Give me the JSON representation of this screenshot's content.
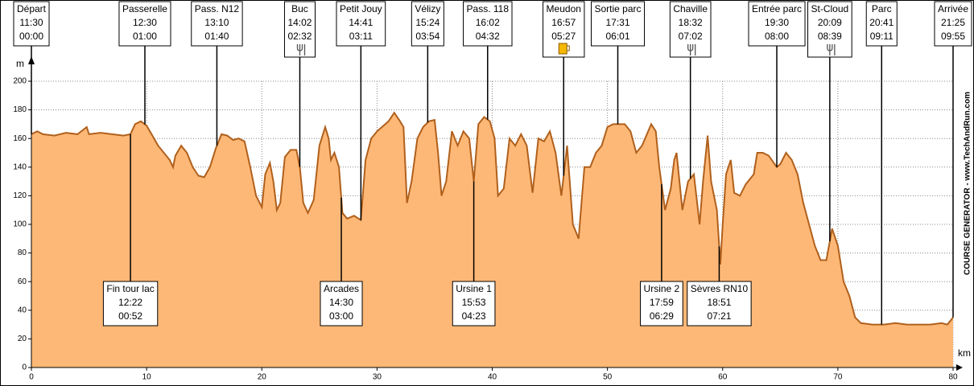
{
  "chart_data": {
    "type": "area",
    "x_label": "km",
    "y_label": "m",
    "watermark": "COURSE GENERATOR - www.TechAndRun.com",
    "xlim": [
      0,
      80
    ],
    "xticks": [
      0,
      10,
      20,
      30,
      40,
      50,
      60,
      70,
      80
    ],
    "ylim": [
      0,
      200
    ],
    "yticks": [
      0,
      20,
      40,
      60,
      80,
      100,
      120,
      140,
      160,
      180,
      200
    ],
    "grid": true,
    "x": [
      0,
      0.5,
      1,
      2,
      3,
      4,
      4.8,
      5,
      6,
      7,
      8,
      8.6,
      9,
      9.5,
      10,
      10.5,
      11,
      11.5,
      12,
      12.3,
      12.5,
      13,
      13.5,
      14,
      14.5,
      15,
      15.5,
      16,
      16.5,
      17,
      17.5,
      18,
      18.5,
      19,
      19.5,
      20,
      20.3,
      20.7,
      21,
      21.3,
      21.6,
      22,
      22.5,
      23,
      23.3,
      23.6,
      24,
      24.5,
      25,
      25.5,
      25.8,
      26,
      26.3,
      26.7,
      27,
      27.4,
      28,
      28.6,
      29,
      29.5,
      30,
      31,
      31.5,
      32,
      32.3,
      32.6,
      33,
      33.5,
      34,
      34.5,
      35,
      35.3,
      35.6,
      36,
      36.5,
      37,
      37.5,
      38,
      38.4,
      38.8,
      39.3,
      39.8,
      40.2,
      40.5,
      41,
      41.5,
      42,
      42.5,
      43,
      43.5,
      44,
      44.5,
      45,
      45.5,
      46,
      46.5,
      47,
      47.5,
      48,
      48.5,
      49,
      49.5,
      50,
      50.5,
      51,
      51.5,
      52,
      52.5,
      53,
      53.8,
      54.2,
      54.5,
      55,
      55.5,
      55.8,
      56,
      56.5,
      57,
      57.5,
      58,
      58.3,
      58.7,
      59,
      59.5,
      59.8,
      60,
      60.3,
      60.7,
      61,
      61.5,
      62,
      62.7,
      63,
      63.5,
      64,
      64.7,
      65,
      65.5,
      66,
      66.5,
      67,
      67.5,
      68,
      68.5,
      69,
      69.5,
      70,
      70.5,
      71,
      71.5,
      72,
      73,
      74,
      75,
      76,
      77,
      78,
      79,
      79.5,
      80
    ],
    "series": [
      {
        "color": "#b0601c",
        "fill": "#fdb877",
        "values": [
          163,
          165,
          163,
          162,
          164,
          163,
          168,
          163,
          164,
          163,
          162,
          163,
          170,
          172,
          169,
          162,
          155,
          150,
          145,
          140,
          148,
          155,
          150,
          140,
          134,
          133,
          140,
          153,
          163,
          162,
          159,
          160,
          158,
          140,
          120,
          112,
          135,
          143,
          130,
          110,
          115,
          147,
          152,
          152,
          140,
          115,
          108,
          117,
          155,
          168,
          160,
          145,
          150,
          140,
          108,
          104,
          106,
          103,
          145,
          160,
          165,
          172,
          178,
          172,
          168,
          115,
          130,
          160,
          168,
          172,
          173,
          150,
          120,
          130,
          165,
          155,
          165,
          160,
          130,
          170,
          175,
          172,
          160,
          120,
          125,
          160,
          155,
          163,
          155,
          122,
          160,
          158,
          165,
          150,
          120,
          155,
          100,
          90,
          140,
          140,
          150,
          155,
          168,
          170,
          170,
          170,
          165,
          150,
          155,
          170,
          165,
          140,
          110,
          125,
          145,
          150,
          110,
          130,
          135,
          100,
          130,
          162,
          130,
          110,
          72,
          100,
          135,
          145,
          122,
          120,
          128,
          135,
          150,
          150,
          148,
          140,
          142,
          150,
          145,
          135,
          115,
          100,
          85,
          75,
          75,
          97,
          85,
          60,
          50,
          35,
          31,
          30,
          30,
          31,
          30,
          30,
          30,
          31,
          30,
          35
        ]
      }
    ],
    "waypoints_top": [
      {
        "label": "Départ",
        "time": "11:30",
        "elapsed": "00:00",
        "km": 0
      },
      {
        "label": "Passerelle",
        "time": "12:30",
        "elapsed": "01:00",
        "km": 9.85
      },
      {
        "label": "Pass. N12",
        "time": "13:10",
        "elapsed": "01:40",
        "km": 16.1
      },
      {
        "label": "Buc",
        "time": "14:02",
        "elapsed": "02:32",
        "km": 23.3,
        "icon": "fork"
      },
      {
        "label": "Petit Jouy",
        "time": "14:41",
        "elapsed": "03:11",
        "km": 28.6
      },
      {
        "label": "Vélizy",
        "time": "15:24",
        "elapsed": "03:54",
        "km": 34.4
      },
      {
        "label": "Pass. 118",
        "time": "16:02",
        "elapsed": "04:32",
        "km": 39.6
      },
      {
        "label": "Meudon",
        "time": "16:57",
        "elapsed": "05:27",
        "km": 46.2,
        "icon": "beer"
      },
      {
        "label": "Sortie parc",
        "time": "17:31",
        "elapsed": "06:01",
        "km": 50.9
      },
      {
        "label": "Chaville",
        "time": "18:32",
        "elapsed": "07:02",
        "km": 57.2,
        "icon": "fork"
      },
      {
        "label": "Entrée parc",
        "time": "19:30",
        "elapsed": "08:00",
        "km": 64.7
      },
      {
        "label": "St-Cloud",
        "time": "20:09",
        "elapsed": "08:39",
        "km": 69.3,
        "icon": "fork"
      },
      {
        "label": "Parc",
        "time": "20:41",
        "elapsed": "09:11",
        "km": 73.8
      },
      {
        "label": "Arrivée",
        "time": "21:25",
        "elapsed": "09:55",
        "km": 80
      }
    ],
    "waypoints_bottom": [
      {
        "label": "Fin tour lac",
        "time": "12:22",
        "elapsed": "00:52",
        "km": 8.6
      },
      {
        "label": "Arcades",
        "time": "14:30",
        "elapsed": "03:00",
        "km": 26.9
      },
      {
        "label": "Ursine 1",
        "time": "15:53",
        "elapsed": "04:23",
        "km": 38.4
      },
      {
        "label": "Ursine 2",
        "time": "17:59",
        "elapsed": "06:29",
        "km": 54.7
      },
      {
        "label": "Sèvres RN10",
        "time": "18:51",
        "elapsed": "07:21",
        "km": 59.7
      }
    ]
  }
}
